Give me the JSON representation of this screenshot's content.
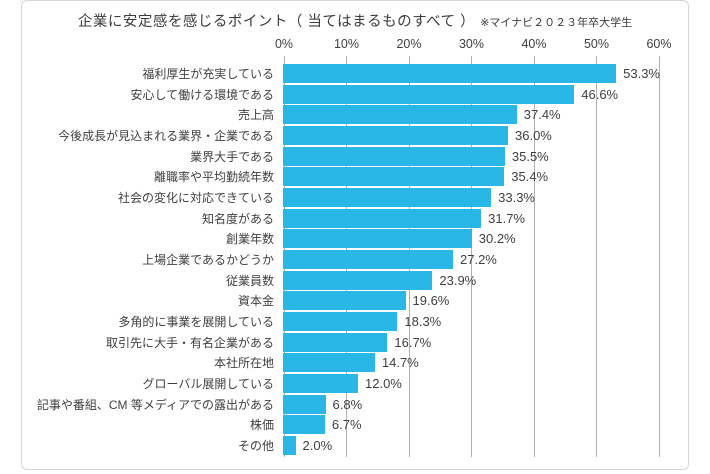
{
  "chart": {
    "title": "企業に安定感を感じるポイント（ 当てはまるものすべて ）",
    "note": "※マイナビ２０２３年卒大学生"
  },
  "chart_data": {
    "type": "bar",
    "orientation": "horizontal",
    "title": "企業に安定感を感じるポイント（ 当てはまるものすべて ）",
    "subtitle": "※マイナビ２０２３年卒大学生",
    "categories": [
      "福利厚生が充実している",
      "安心して働ける環境である",
      "売上高",
      "今後成長が見込まれる業界・企業である",
      "業界大手である",
      "離職率や平均勤続年数",
      "社会の変化に対応できている",
      "知名度がある",
      "創業年数",
      "上場企業であるかどうか",
      "従業員数",
      "資本金",
      "多角的に事業を展開している",
      "取引先に大手・有名企業がある",
      "本社所在地",
      "グローバル展開している",
      "記事や番組、CM 等メディアでの露出がある",
      "株価",
      "その他"
    ],
    "values": [
      53.3,
      46.6,
      37.4,
      36.0,
      35.5,
      35.4,
      33.3,
      31.7,
      30.2,
      27.2,
      23.9,
      19.6,
      18.3,
      16.7,
      14.7,
      12.0,
      6.8,
      6.7,
      2.0
    ],
    "value_labels": [
      "53.3%",
      "46.6%",
      "37.4%",
      "36.0%",
      "35.5%",
      "35.4%",
      "33.3%",
      "31.7%",
      "30.2%",
      "27.2%",
      "23.9%",
      "19.6%",
      "18.3%",
      "16.7%",
      "14.7%",
      "12.0%",
      "6.8%",
      "6.7%",
      "2.0%"
    ],
    "x_ticks": [
      "0%",
      "10%",
      "20%",
      "30%",
      "40%",
      "50%",
      "60%"
    ],
    "xlim": [
      0,
      60
    ],
    "grid": true,
    "legend": false,
    "colors": {
      "bar": "#29b7e8",
      "gridline": "#b0b0b0",
      "frame_border": "#d6d6d6",
      "text": "#3f3f3f"
    }
  }
}
